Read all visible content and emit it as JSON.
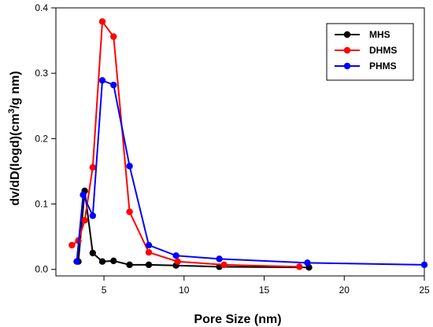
{
  "chart_data": {
    "type": "line",
    "xlabel": "Pore Size (nm)",
    "ylabel": "dv/dD(logd)(cm",
    "ylabel_sup": "3",
    "ylabel_tail": "/g nm)",
    "xlim": [
      2,
      25
    ],
    "ylim": [
      -0.01,
      0.4
    ],
    "xticks": [
      5,
      10,
      15,
      20,
      25
    ],
    "yticks": [
      0.0,
      0.1,
      0.2,
      0.3,
      0.4
    ],
    "xtick_labels": [
      "5",
      "10",
      "15",
      "20",
      "25"
    ],
    "ytick_labels": [
      "0.0",
      "0.1",
      "0.2",
      "0.3",
      "0.4"
    ],
    "grid": false,
    "legend_position": "top-right",
    "series": [
      {
        "name": "MHS",
        "color": "#000000",
        "x": [
          3.4,
          3.8,
          4.3,
          4.9,
          5.6,
          6.6,
          7.8,
          9.5,
          12.2,
          17.8
        ],
        "y": [
          0.012,
          0.12,
          0.025,
          0.012,
          0.013,
          0.007,
          0.007,
          0.006,
          0.004,
          0.003
        ]
      },
      {
        "name": "DHMS",
        "color": "#ff0000",
        "x": [
          3.0,
          3.4,
          3.8,
          4.3,
          4.9,
          5.6,
          6.6,
          7.8,
          9.6,
          12.5,
          17.2
        ],
        "y": [
          0.037,
          0.044,
          0.075,
          0.156,
          0.379,
          0.356,
          0.088,
          0.026,
          0.012,
          0.007,
          0.004
        ]
      },
      {
        "name": "PHMS",
        "color": "#0000ff",
        "x": [
          3.3,
          3.7,
          4.3,
          4.9,
          5.6,
          6.6,
          7.8,
          9.5,
          12.2,
          17.7,
          25.0
        ],
        "y": [
          0.012,
          0.114,
          0.082,
          0.289,
          0.282,
          0.158,
          0.037,
          0.021,
          0.016,
          0.01,
          0.007
        ]
      }
    ]
  }
}
